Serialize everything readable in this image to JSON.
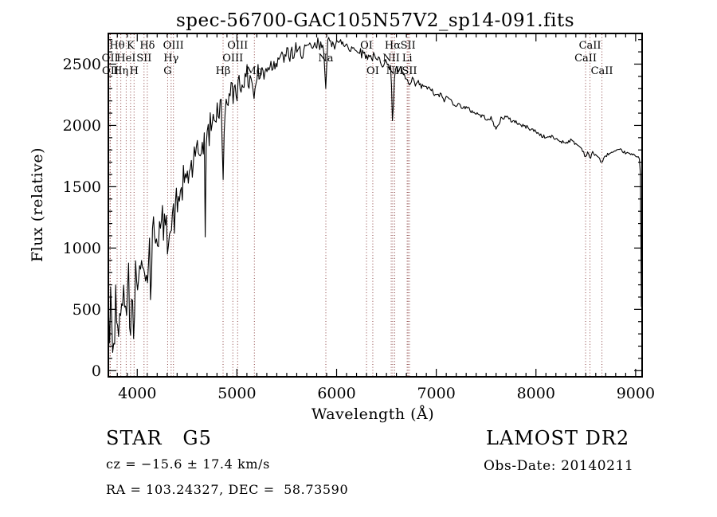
{
  "title": "spec-56700-GAC105N57V2_sp14-091.fits",
  "annotations": {
    "class_label": "STAR   G5",
    "survey": "LAMOST DR2",
    "cz": "cz = −15.6 ± 17.4 km/s",
    "obs_date": "Obs-Date: 20140211",
    "coords": "RA = 103.24327, DEC =  58.73590"
  },
  "chart_data": {
    "type": "line",
    "title": "spec-56700-GAC105N57V2_sp14-091.fits",
    "xlabel": "Wavelength (Å)",
    "ylabel": "Flux (relative)",
    "xlim": [
      3710,
      9065
    ],
    "ylim": [
      -50,
      2750
    ],
    "x_ticks": [
      4000,
      5000,
      6000,
      7000,
      8000,
      9000
    ],
    "x_minor_step": 100,
    "y_ticks": [
      0,
      500,
      1000,
      1500,
      2000,
      2500
    ],
    "y_minor_step": 100,
    "grid": false,
    "legend": null,
    "line_color": "#000000",
    "marker_color": "#8a4040",
    "noise_seed": 42,
    "spectral_lines": [
      {
        "wavelength": 3727,
        "label": "OII",
        "row": 2
      },
      {
        "wavelength": 3730,
        "label": "OII",
        "row": 3
      },
      {
        "wavelength": 3798,
        "label": "Hθ",
        "row": 1
      },
      {
        "wavelength": 3835,
        "label": "Hη",
        "row": 3
      },
      {
        "wavelength": 3889,
        "label": "HeI",
        "row": 2
      },
      {
        "wavelength": 3933,
        "label": "K",
        "row": 1
      },
      {
        "wavelength": 3968,
        "label": "H",
        "row": 3
      },
      {
        "wavelength": 4068,
        "label": "SII",
        "row": 2
      },
      {
        "wavelength": 4101,
        "label": "Hδ",
        "row": 1
      },
      {
        "wavelength": 4305,
        "label": "G",
        "row": 3
      },
      {
        "wavelength": 4340,
        "label": "Hγ",
        "row": 2
      },
      {
        "wavelength": 4363,
        "label": "OIII",
        "row": 1
      },
      {
        "wavelength": 4861,
        "label": "Hβ",
        "row": 3
      },
      {
        "wavelength": 4959,
        "label": "OIII",
        "row": 2
      },
      {
        "wavelength": 5007,
        "label": "OIII",
        "row": 1
      },
      {
        "wavelength": 5175,
        "label": "Mg",
        "row": 3
      },
      {
        "wavelength": 5892,
        "label": "Na",
        "row": 2
      },
      {
        "wavelength": 6300,
        "label": "OI",
        "row": 1
      },
      {
        "wavelength": 6363,
        "label": "OI",
        "row": 3
      },
      {
        "wavelength": 6548,
        "label": "NII",
        "row": 2
      },
      {
        "wavelength": 6563,
        "label": "Hα",
        "row": 1
      },
      {
        "wavelength": 6583,
        "label": "NII",
        "row": 3
      },
      {
        "wavelength": 6708,
        "label": "Li",
        "row": 2
      },
      {
        "wavelength": 6717,
        "label": "SII",
        "row": 1
      },
      {
        "wavelength": 6731,
        "label": "SII",
        "row": 3
      },
      {
        "wavelength": 8498,
        "label": "CaII",
        "row": 2
      },
      {
        "wavelength": 8542,
        "label": "CaII",
        "row": 1
      },
      {
        "wavelength": 8662,
        "label": "CaII",
        "row": 3
      }
    ],
    "spectrum_envelope": [
      [
        3712,
        150
      ],
      [
        3715,
        820
      ],
      [
        3719,
        420
      ],
      [
        3724,
        210
      ],
      [
        3727,
        170
      ],
      [
        3732,
        520
      ],
      [
        3738,
        690
      ],
      [
        3744,
        300
      ],
      [
        3750,
        120
      ],
      [
        3756,
        400
      ],
      [
        3762,
        230
      ],
      [
        3769,
        120
      ],
      [
        3776,
        420
      ],
      [
        3783,
        660
      ],
      [
        3791,
        310
      ],
      [
        3798,
        160
      ],
      [
        3806,
        500
      ],
      [
        3813,
        370
      ],
      [
        3820,
        150
      ],
      [
        3827,
        560
      ],
      [
        3835,
        300
      ],
      [
        3842,
        580
      ],
      [
        3849,
        800
      ],
      [
        3856,
        520
      ],
      [
        3863,
        700
      ],
      [
        3870,
        380
      ],
      [
        3877,
        550
      ],
      [
        3884,
        480
      ],
      [
        3889,
        400
      ],
      [
        3896,
        780
      ],
      [
        3903,
        690
      ],
      [
        3910,
        860
      ],
      [
        3917,
        640
      ],
      [
        3925,
        450
      ],
      [
        3933,
        260
      ],
      [
        3940,
        680
      ],
      [
        3947,
        810
      ],
      [
        3954,
        620
      ],
      [
        3961,
        440
      ],
      [
        3968,
        300
      ],
      [
        3975,
        650
      ],
      [
        3982,
        820
      ],
      [
        3990,
        710
      ],
      [
        4000,
        770
      ],
      [
        4010,
        890
      ],
      [
        4020,
        710
      ],
      [
        4030,
        850
      ],
      [
        4041,
        780
      ],
      [
        4051,
        910
      ],
      [
        4061,
        830
      ],
      [
        4072,
        940
      ],
      [
        4082,
        870
      ],
      [
        4091,
        790
      ],
      [
        4101,
        640
      ],
      [
        4112,
        940
      ],
      [
        4124,
        1050
      ],
      [
        4136,
        520
      ],
      [
        4148,
        1040
      ],
      [
        4160,
        1170
      ],
      [
        4175,
        1090
      ],
      [
        4190,
        1150
      ],
      [
        4205,
        1060
      ],
      [
        4220,
        1190
      ],
      [
        4235,
        1100
      ],
      [
        4250,
        1250
      ],
      [
        4268,
        1140
      ],
      [
        4286,
        1220
      ],
      [
        4305,
        1020
      ],
      [
        4322,
        1240
      ],
      [
        4340,
        1120
      ],
      [
        4356,
        1290
      ],
      [
        4372,
        1220
      ],
      [
        4390,
        1390
      ],
      [
        4408,
        1330
      ],
      [
        4426,
        1490
      ],
      [
        4444,
        1410
      ],
      [
        4462,
        1560
      ],
      [
        4480,
        1490
      ],
      [
        4498,
        1630
      ],
      [
        4516,
        1550
      ],
      [
        4534,
        1700
      ],
      [
        4552,
        1620
      ],
      [
        4570,
        1760
      ],
      [
        4588,
        1680
      ],
      [
        4606,
        1820
      ],
      [
        4624,
        1740
      ],
      [
        4642,
        1860
      ],
      [
        4660,
        1790
      ],
      [
        4678,
        1920
      ],
      [
        4684,
        640
      ],
      [
        4691,
        1930
      ],
      [
        4706,
        1970
      ],
      [
        4721,
        1900
      ],
      [
        4737,
        2050
      ],
      [
        4753,
        1970
      ],
      [
        4769,
        2110
      ],
      [
        4785,
        2040
      ],
      [
        4801,
        2160
      ],
      [
        4817,
        2080
      ],
      [
        4833,
        2190
      ],
      [
        4847,
        2110
      ],
      [
        4861,
        1450
      ],
      [
        4877,
        2190
      ],
      [
        4894,
        2140
      ],
      [
        4911,
        2260
      ],
      [
        4928,
        2190
      ],
      [
        4945,
        2300
      ],
      [
        4962,
        2230
      ],
      [
        4980,
        2340
      ],
      [
        5000,
        2270
      ],
      [
        5020,
        2380
      ],
      [
        5040,
        2300
      ],
      [
        5060,
        2400
      ],
      [
        5080,
        2330
      ],
      [
        5100,
        2420
      ],
      [
        5120,
        2350
      ],
      [
        5140,
        2430
      ],
      [
        5158,
        2330
      ],
      [
        5175,
        2210
      ],
      [
        5192,
        2360
      ],
      [
        5210,
        2440
      ],
      [
        5230,
        2380
      ],
      [
        5250,
        2470
      ],
      [
        5270,
        2410
      ],
      [
        5290,
        2500
      ],
      [
        5310,
        2440
      ],
      [
        5330,
        2530
      ],
      [
        5350,
        2470
      ],
      [
        5372,
        2550
      ],
      [
        5394,
        2490
      ],
      [
        5416,
        2570
      ],
      [
        5438,
        2510
      ],
      [
        5460,
        2590
      ],
      [
        5482,
        2530
      ],
      [
        5504,
        2600
      ],
      [
        5526,
        2550
      ],
      [
        5548,
        2610
      ],
      [
        5570,
        2560
      ],
      [
        5592,
        2620
      ],
      [
        5614,
        2570
      ],
      [
        5636,
        2630
      ],
      [
        5658,
        2580
      ],
      [
        5680,
        2640
      ],
      [
        5702,
        2600
      ],
      [
        5724,
        2650
      ],
      [
        5746,
        2610
      ],
      [
        5768,
        2660
      ],
      [
        5790,
        2620
      ],
      [
        5812,
        2670
      ],
      [
        5834,
        2630
      ],
      [
        5856,
        2680
      ],
      [
        5874,
        2640
      ],
      [
        5892,
        2270
      ],
      [
        5910,
        2650
      ],
      [
        5928,
        2700
      ],
      [
        5946,
        2660
      ],
      [
        5964,
        2710
      ],
      [
        5982,
        2660
      ],
      [
        6000,
        2700
      ],
      [
        6025,
        2650
      ],
      [
        6050,
        2690
      ],
      [
        6075,
        2640
      ],
      [
        6100,
        2670
      ],
      [
        6130,
        2620
      ],
      [
        6160,
        2650
      ],
      [
        6190,
        2600
      ],
      [
        6220,
        2630
      ],
      [
        6250,
        2580
      ],
      [
        6280,
        2600
      ],
      [
        6300,
        2550
      ],
      [
        6325,
        2590
      ],
      [
        6350,
        2540
      ],
      [
        6375,
        2570
      ],
      [
        6400,
        2520
      ],
      [
        6430,
        2550
      ],
      [
        6460,
        2500
      ],
      [
        6490,
        2530
      ],
      [
        6520,
        2470
      ],
      [
        6545,
        2500
      ],
      [
        6563,
        1980
      ],
      [
        6585,
        2480
      ],
      [
        6610,
        2440
      ],
      [
        6640,
        2460
      ],
      [
        6670,
        2410
      ],
      [
        6700,
        2380
      ],
      [
        6717,
        2350
      ],
      [
        6731,
        2320
      ],
      [
        6760,
        2370
      ],
      [
        6790,
        2330
      ],
      [
        6820,
        2350
      ],
      [
        6850,
        2310
      ],
      [
        6880,
        2330
      ],
      [
        6910,
        2290
      ],
      [
        6940,
        2310
      ],
      [
        6970,
        2260
      ],
      [
        7000,
        2240
      ],
      [
        7040,
        2250
      ],
      [
        7080,
        2210
      ],
      [
        7120,
        2230
      ],
      [
        7160,
        2190
      ],
      [
        7200,
        2170
      ],
      [
        7250,
        2160
      ],
      [
        7300,
        2140
      ],
      [
        7350,
        2120
      ],
      [
        7400,
        2100
      ],
      [
        7450,
        2080
      ],
      [
        7500,
        2060
      ],
      [
        7550,
        2055
      ],
      [
        7585,
        1990
      ],
      [
        7615,
        1980
      ],
      [
        7650,
        2060
      ],
      [
        7700,
        2070
      ],
      [
        7750,
        2040
      ],
      [
        7800,
        2030
      ],
      [
        7850,
        2000
      ],
      [
        7900,
        1990
      ],
      [
        7950,
        1970
      ],
      [
        8000,
        1950
      ],
      [
        8050,
        1920
      ],
      [
        8100,
        1900
      ],
      [
        8150,
        1910
      ],
      [
        8200,
        1890
      ],
      [
        8250,
        1870
      ],
      [
        8300,
        1860
      ],
      [
        8350,
        1880
      ],
      [
        8400,
        1850
      ],
      [
        8450,
        1820
      ],
      [
        8475,
        1790
      ],
      [
        8498,
        1740
      ],
      [
        8520,
        1790
      ],
      [
        8542,
        1720
      ],
      [
        8565,
        1780
      ],
      [
        8600,
        1760
      ],
      [
        8630,
        1740
      ],
      [
        8662,
        1690
      ],
      [
        8695,
        1750
      ],
      [
        8730,
        1770
      ],
      [
        8770,
        1780
      ],
      [
        8810,
        1790
      ],
      [
        8850,
        1800
      ],
      [
        8890,
        1780
      ],
      [
        8930,
        1770
      ],
      [
        8970,
        1760
      ],
      [
        9000,
        1755
      ],
      [
        9030,
        1740
      ],
      [
        9046,
        1725
      ],
      [
        9052,
        1400
      ],
      [
        9056,
        800
      ],
      [
        9060,
        300
      ],
      [
        9063,
        130
      ]
    ],
    "noise_profile": [
      [
        3712,
        185
      ],
      [
        3850,
        175
      ],
      [
        4000,
        155
      ],
      [
        4150,
        140
      ],
      [
        4300,
        130
      ],
      [
        4500,
        115
      ],
      [
        4700,
        105
      ],
      [
        4900,
        95
      ],
      [
        5100,
        85
      ],
      [
        5300,
        75
      ],
      [
        5500,
        62
      ],
      [
        5700,
        55
      ],
      [
        5900,
        48
      ],
      [
        6100,
        40
      ],
      [
        6300,
        34
      ],
      [
        6500,
        30
      ],
      [
        6700,
        26
      ],
      [
        7000,
        22
      ],
      [
        7300,
        20
      ],
      [
        7600,
        17
      ],
      [
        8000,
        15
      ],
      [
        8400,
        13
      ],
      [
        8700,
        12
      ],
      [
        9000,
        10
      ],
      [
        9065,
        6
      ]
    ]
  }
}
